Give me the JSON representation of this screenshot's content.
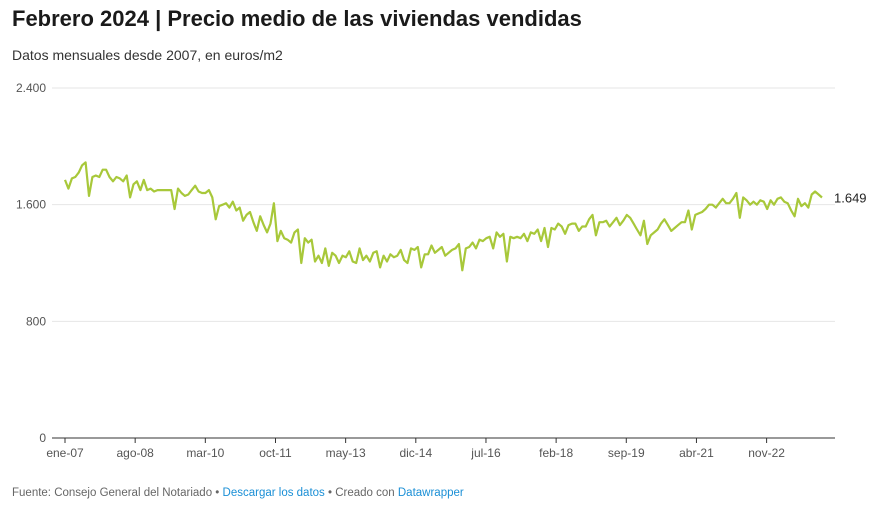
{
  "title": "Febrero 2024 | Precio medio de las viviendas vendidas",
  "subtitle": "Datos mensuales desde 2007, en euros/m2",
  "footer": {
    "source": "Fuente: Consejo General del Notariado",
    "separator": " • ",
    "download_link": "Descargar los datos",
    "created_with": "Creado con ",
    "tool_link": "Datawrapper"
  },
  "colors": {
    "line": "#a8c83a",
    "grid": "#e6e6e6",
    "axis": "#333333"
  },
  "chart_data": {
    "type": "line",
    "title": "Febrero 2024 | Precio medio de las viviendas vendidas",
    "subtitle": "Datos mensuales desde 2007, en euros/m2",
    "xlabel": "",
    "ylabel": "",
    "ylim": [
      0,
      2400
    ],
    "yticks": [
      0,
      800,
      1600,
      2400
    ],
    "ytick_labels": [
      "0",
      "800",
      "1.600",
      "2.400"
    ],
    "x_start": "2007-01",
    "x_end": "2024-02",
    "xticks": [
      "2007-01",
      "2008-08",
      "2010-03",
      "2011-10",
      "2013-05",
      "2014-12",
      "2016-07",
      "2018-02",
      "2019-09",
      "2021-04",
      "2022-11"
    ],
    "xtick_labels": [
      "ene-07",
      "ago-08",
      "mar-10",
      "oct-11",
      "may-13",
      "dic-14",
      "jul-16",
      "feb-18",
      "sep-19",
      "abr-21",
      "nov-22"
    ],
    "grid": true,
    "end_label": "1.649",
    "series": [
      {
        "name": "",
        "values": [
          1770,
          1710,
          1780,
          1790,
          1820,
          1870,
          1890,
          1660,
          1790,
          1800,
          1790,
          1840,
          1840,
          1790,
          1760,
          1790,
          1780,
          1760,
          1800,
          1650,
          1740,
          1760,
          1700,
          1770,
          1700,
          1710,
          1690,
          1700,
          1700,
          1700,
          1700,
          1700,
          1570,
          1710,
          1680,
          1660,
          1670,
          1700,
          1730,
          1690,
          1680,
          1680,
          1700,
          1650,
          1500,
          1590,
          1600,
          1610,
          1580,
          1620,
          1560,
          1580,
          1490,
          1530,
          1550,
          1480,
          1420,
          1520,
          1460,
          1410,
          1470,
          1610,
          1350,
          1420,
          1370,
          1360,
          1340,
          1410,
          1430,
          1200,
          1370,
          1340,
          1360,
          1210,
          1250,
          1200,
          1300,
          1180,
          1270,
          1250,
          1200,
          1250,
          1240,
          1280,
          1210,
          1200,
          1300,
          1220,
          1250,
          1210,
          1270,
          1280,
          1170,
          1250,
          1210,
          1260,
          1240,
          1250,
          1290,
          1220,
          1200,
          1300,
          1290,
          1310,
          1170,
          1260,
          1260,
          1320,
          1270,
          1290,
          1310,
          1250,
          1270,
          1290,
          1300,
          1330,
          1150,
          1300,
          1310,
          1340,
          1300,
          1360,
          1350,
          1370,
          1380,
          1300,
          1410,
          1380,
          1400,
          1210,
          1380,
          1370,
          1380,
          1370,
          1400,
          1350,
          1410,
          1400,
          1430,
          1350,
          1440,
          1310,
          1440,
          1430,
          1470,
          1450,
          1400,
          1460,
          1470,
          1470,
          1420,
          1450,
          1450,
          1500,
          1530,
          1390,
          1480,
          1480,
          1490,
          1450,
          1480,
          1510,
          1460,
          1490,
          1530,
          1510,
          1470,
          1430,
          1390,
          1490,
          1330,
          1390,
          1410,
          1430,
          1470,
          1500,
          1460,
          1420,
          1440,
          1460,
          1480,
          1480,
          1560,
          1430,
          1530,
          1540,
          1550,
          1570,
          1600,
          1600,
          1580,
          1610,
          1640,
          1610,
          1610,
          1640,
          1680,
          1510,
          1650,
          1630,
          1600,
          1620,
          1600,
          1630,
          1620,
          1570,
          1630,
          1600,
          1640,
          1650,
          1620,
          1610,
          1560,
          1520,
          1640,
          1590,
          1610,
          1580,
          1670,
          1690,
          1670,
          1649
        ]
      }
    ]
  }
}
